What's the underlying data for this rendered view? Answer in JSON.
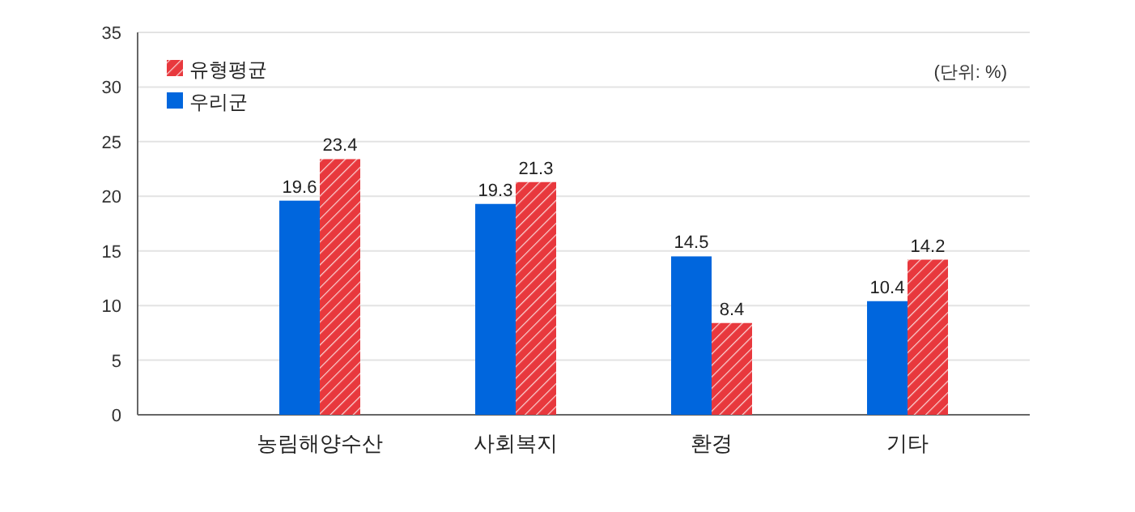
{
  "chart_data": {
    "type": "bar",
    "categories": [
      "농림해양수산",
      "사회복지",
      "환경",
      "기타"
    ],
    "series": [
      {
        "name": "우리군",
        "color": "#0066dd",
        "values": [
          19.6,
          19.3,
          14.5,
          10.4
        ]
      },
      {
        "name": "유형평균",
        "color": "#e8383d",
        "values": [
          23.4,
          21.3,
          8.4,
          14.2
        ]
      }
    ],
    "ylim": [
      0,
      35
    ],
    "yticks": [
      0,
      5,
      10,
      15,
      20,
      25,
      30,
      35
    ],
    "grid": "y",
    "legend": "top left",
    "data_labels": true,
    "annotations": [
      "(단위: %)"
    ]
  }
}
